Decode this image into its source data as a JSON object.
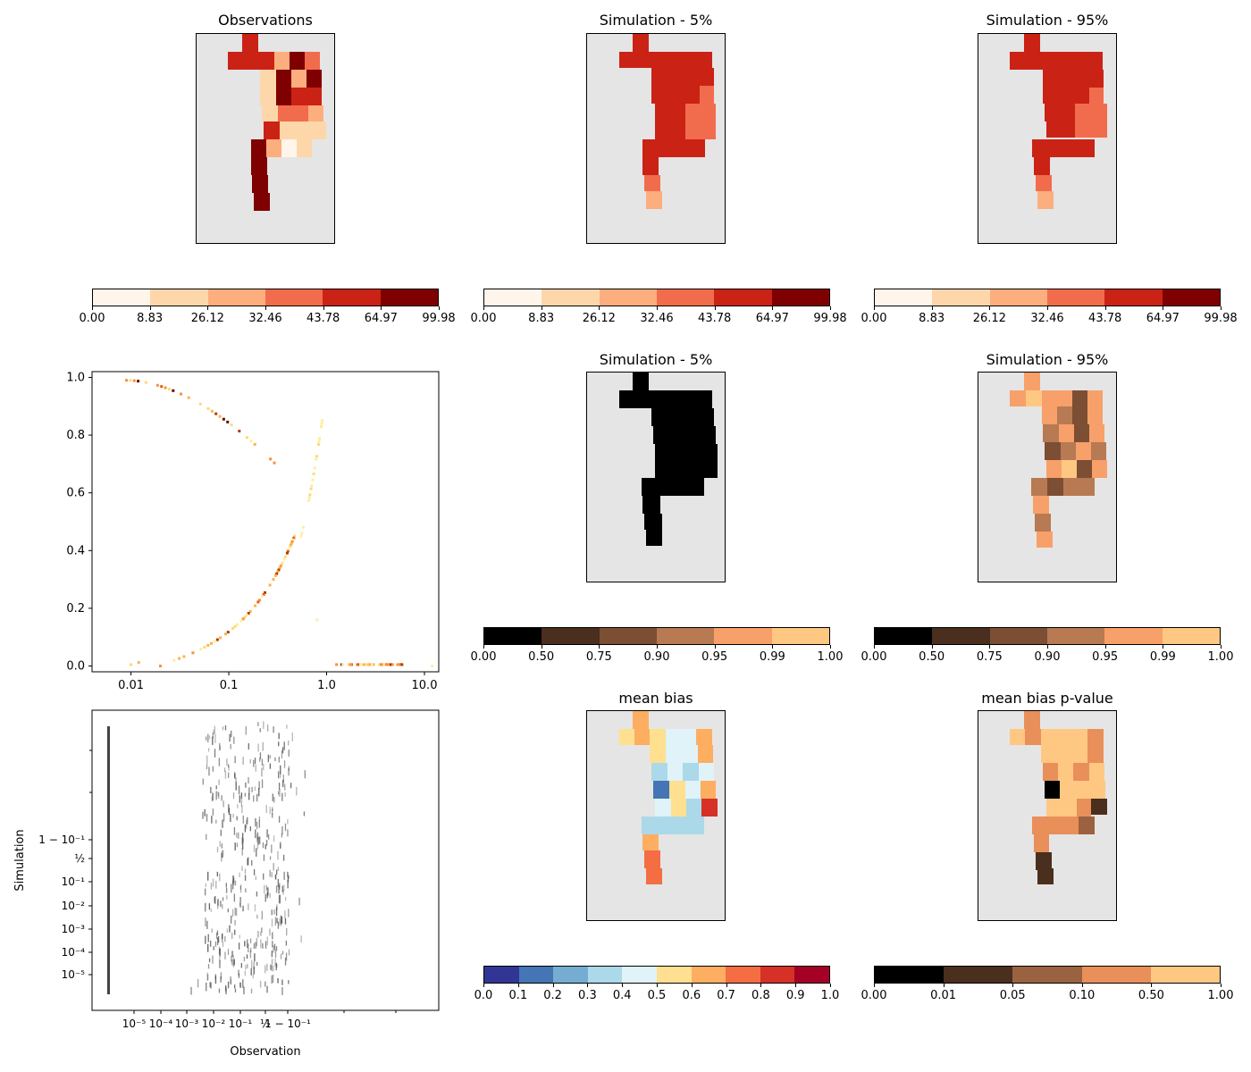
{
  "panels": {
    "obs_title": "Observations",
    "sim5_title": "Simulation -  5%",
    "sim95_title": "Simulation - 95%",
    "rank5_title": "Simulation -  5%",
    "rank95_title": "Simulation - 95%",
    "bias_title": "mean bias",
    "pval_title": "mean bias p-value"
  },
  "colorbars": {
    "value": {
      "colors": [
        "#fff5eb",
        "#fdd7aa",
        "#fdae7e",
        "#f16c4c",
        "#cb2216",
        "#7f0000"
      ],
      "ticks": [
        "0.00",
        "8.83",
        "26.12",
        "32.46",
        "43.78",
        "64.97",
        "99.98"
      ]
    },
    "rank": {
      "colors": [
        "#000000",
        "#4a2e1e",
        "#7c4e34",
        "#b77a52",
        "#f7a06a",
        "#ffc882"
      ],
      "ticks": [
        "0.00",
        "0.50",
        "0.75",
        "0.90",
        "0.95",
        "0.99",
        "1.00"
      ]
    },
    "bias": {
      "colors": [
        "#313695",
        "#4575b4",
        "#74add1",
        "#abd9e9",
        "#e0f3f8",
        "#fee090",
        "#fdae61",
        "#f46d43",
        "#d73027",
        "#a50026"
      ],
      "ticks": [
        "0.0",
        "0.1",
        "0.2",
        "0.3",
        "0.4",
        "0.5",
        "0.6",
        "0.7",
        "0.8",
        "0.9",
        "1.0"
      ]
    },
    "pval": {
      "colors": [
        "#000000",
        "#4a2e1e",
        "#9a6240",
        "#e98f5a",
        "#ffc882"
      ],
      "ticks": [
        "0.00",
        "0.01",
        "0.05",
        "0.10",
        "0.50",
        "1.00"
      ]
    }
  },
  "chart_data": [
    {
      "type": "heatmap",
      "subtype": "2d-histogram",
      "xscale": "log",
      "x_ticks": [
        "0.01",
        "0.1",
        "1.0",
        "10.0"
      ],
      "y_ticks": [
        "0.0",
        "0.2",
        "0.4",
        "0.6",
        "0.8",
        "1.0"
      ],
      "xlim": [
        0.004,
        14
      ],
      "ylim": [
        -0.02,
        1.02
      ]
    },
    {
      "type": "scatter",
      "subtype": "qq-density",
      "xlabel": "Observation",
      "ylabel": "Simulation",
      "x_ticks": [
        "10⁻⁵",
        "10⁻⁴",
        "10⁻³",
        "10⁻²",
        "10⁻¹",
        "½",
        "1 − 10⁻¹"
      ],
      "y_ticks": [
        "10⁻⁵",
        "10⁻⁴",
        "10⁻³",
        "10⁻²",
        "10⁻¹",
        "½",
        "1 − 10⁻¹"
      ]
    }
  ]
}
